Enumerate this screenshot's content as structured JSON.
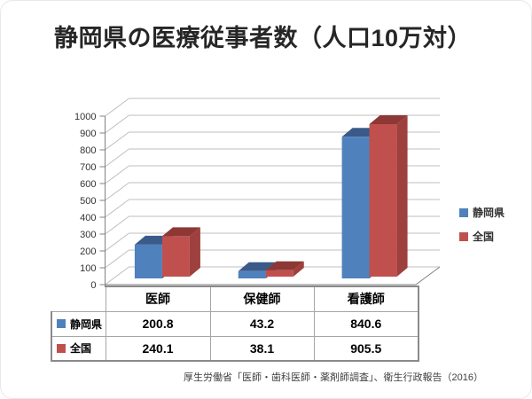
{
  "title": "静岡県の医療従事者数（人口10万対）",
  "source": "厚生労働省「医師・歯科医師・薬剤師調査」、衛生行政報告（2016）",
  "chart_data": {
    "type": "bar",
    "subtype": "3d-clustered-column",
    "title": "静岡県の医療従事者数（人口10万対）",
    "categories": [
      "医師",
      "保健師",
      "看護師"
    ],
    "series": [
      {
        "name": "静岡県",
        "values": [
          200.8,
          43.2,
          840.6
        ],
        "color": "#4F81BD",
        "color_top": "#3A5A8A",
        "color_side": "#365380"
      },
      {
        "name": "全国",
        "values": [
          240.1,
          38.1,
          905.5
        ],
        "color": "#C0504D",
        "color_top": "#8E3835",
        "color_side": "#9E403D"
      }
    ],
    "ylim": [
      0,
      1000
    ],
    "ytick_step": 100,
    "grid": true,
    "legend_position": "right",
    "data_table_shown": true,
    "axis_color": "#808080",
    "grid_color": "#BFBFBF"
  }
}
